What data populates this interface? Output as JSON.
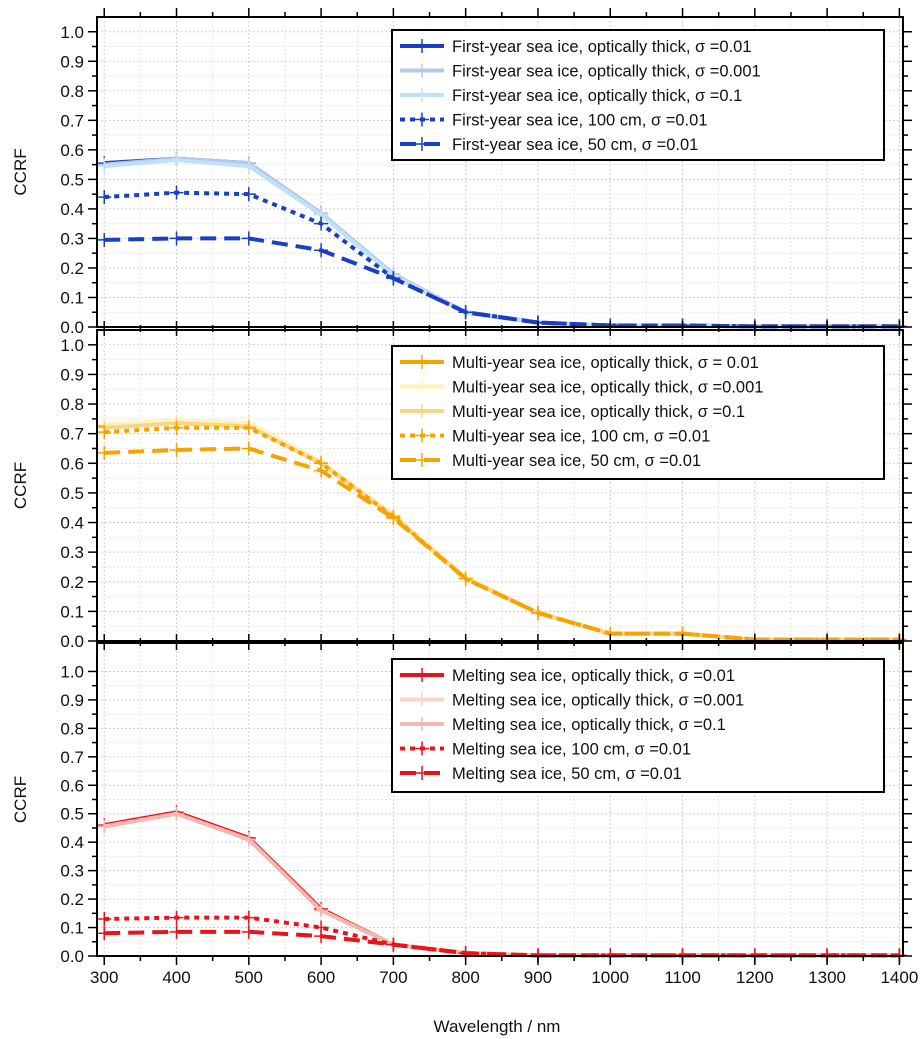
{
  "xlabel": "Wavelength / nm",
  "chart_data": [
    {
      "type": "line",
      "ylabel": "CCRF",
      "xlim": [
        290,
        1405
      ],
      "ylim": [
        0,
        1.05
      ],
      "x_ticks": [
        "300",
        "400",
        "500",
        "600",
        "700",
        "800",
        "900",
        "1000",
        "1100",
        "1200",
        "1300",
        "1400"
      ],
      "y_ticks": [
        "0.0",
        "0.1",
        "0.2",
        "0.3",
        "0.4",
        "0.5",
        "0.6",
        "0.7",
        "0.8",
        "0.9",
        "1.0"
      ],
      "grid": true,
      "legend_position": "top-right",
      "x": [
        300,
        400,
        500,
        600,
        700,
        800,
        900,
        1000,
        1100,
        1200,
        1300,
        1400
      ],
      "series": [
        {
          "name": "First-year sea ice, optically thick, σ =0.01",
          "color": "#1a3fc4",
          "dash": "solid",
          "values": [
            0.555,
            0.57,
            0.555,
            0.385,
            0.175,
            0.05,
            0.015,
            0.005,
            0.005,
            0.002,
            0.002,
            0.002
          ]
        },
        {
          "name": "First-year sea ice, optically thick, σ =0.001",
          "color": "#b4c7ee",
          "dash": "solid",
          "values": [
            0.55,
            0.57,
            0.555,
            0.385,
            0.18,
            0.05,
            0.015,
            0.005,
            0.005,
            0.002,
            0.002,
            0.002
          ]
        },
        {
          "name": "First-year sea ice, optically thick, σ =0.1",
          "color": "#bfe2f5",
          "dash": "solid",
          "values": [
            0.545,
            0.565,
            0.545,
            0.38,
            0.175,
            0.05,
            0.015,
            0.005,
            0.005,
            0.002,
            0.002,
            0.002
          ]
        },
        {
          "name": "First-year sea ice, 100 cm, σ =0.01",
          "color": "#1a3fc4",
          "dash": "dot",
          "values": [
            0.44,
            0.455,
            0.45,
            0.35,
            0.165,
            0.05,
            0.015,
            0.005,
            0.005,
            0.002,
            0.002,
            0.002
          ]
        },
        {
          "name": "First-year sea ice, 50 cm, σ =0.01",
          "color": "#1a3fc4",
          "dash": "dash",
          "values": [
            0.295,
            0.3,
            0.3,
            0.26,
            0.165,
            0.05,
            0.015,
            0.005,
            0.005,
            0.002,
            0.002,
            0.002
          ]
        }
      ]
    },
    {
      "type": "line",
      "ylabel": "CCRF",
      "xlim": [
        290,
        1405
      ],
      "ylim": [
        0,
        1.05
      ],
      "x_ticks": [
        "300",
        "400",
        "500",
        "600",
        "700",
        "800",
        "900",
        "1000",
        "1100",
        "1200",
        "1300",
        "1400"
      ],
      "y_ticks": [
        "0.0",
        "0.1",
        "0.2",
        "0.3",
        "0.4",
        "0.5",
        "0.6",
        "0.7",
        "0.8",
        "0.9",
        "1.0"
      ],
      "grid": true,
      "legend_position": "top-right",
      "x": [
        300,
        400,
        500,
        600,
        700,
        800,
        900,
        1000,
        1100,
        1200,
        1300,
        1400
      ],
      "series": [
        {
          "name": "Multi-year sea ice, optically thick, σ = 0.01",
          "color": "#f5a300",
          "dash": "solid",
          "values": [
            0.725,
            0.74,
            0.735,
            0.605,
            0.425,
            0.215,
            0.095,
            0.025,
            0.025,
            0.005,
            0.005,
            0.005
          ]
        },
        {
          "name": "Multi-year sea ice, optically thick, σ =0.001",
          "color": "#fbf6b8",
          "dash": "solid",
          "values": [
            0.73,
            0.745,
            0.735,
            0.605,
            0.425,
            0.215,
            0.095,
            0.025,
            0.025,
            0.005,
            0.005,
            0.005
          ]
        },
        {
          "name": "Multi-year sea ice, optically thick, σ =0.1",
          "color": "#f9d48a",
          "dash": "solid",
          "values": [
            0.72,
            0.735,
            0.725,
            0.6,
            0.42,
            0.21,
            0.095,
            0.025,
            0.025,
            0.005,
            0.005,
            0.005
          ]
        },
        {
          "name": "Multi-year sea ice, 100 cm, σ =0.01",
          "color": "#f5a300",
          "dash": "dot",
          "values": [
            0.705,
            0.72,
            0.72,
            0.6,
            0.42,
            0.21,
            0.095,
            0.025,
            0.025,
            0.005,
            0.005,
            0.005
          ]
        },
        {
          "name": "Multi-year sea ice, 50 cm, σ =0.01",
          "color": "#f5a300",
          "dash": "dash",
          "values": [
            0.635,
            0.645,
            0.65,
            0.575,
            0.415,
            0.21,
            0.095,
            0.025,
            0.025,
            0.005,
            0.005,
            0.005
          ]
        }
      ]
    },
    {
      "type": "line",
      "ylabel": "CCRF",
      "xlim": [
        290,
        1405
      ],
      "ylim": [
        0,
        1.1
      ],
      "x_ticks": [
        "300",
        "400",
        "500",
        "600",
        "700",
        "800",
        "900",
        "1000",
        "1100",
        "1200",
        "1300",
        "1400"
      ],
      "y_ticks": [
        "0.0",
        "0.1",
        "0.2",
        "0.3",
        "0.4",
        "0.5",
        "0.6",
        "0.7",
        "0.8",
        "0.9",
        "1.0"
      ],
      "grid": true,
      "legend_position": "top-right",
      "x": [
        300,
        400,
        500,
        600,
        700,
        800,
        900,
        1000,
        1100,
        1200,
        1300,
        1400
      ],
      "series": [
        {
          "name": "Melting sea ice, optically thick, σ =0.01",
          "color": "#e8141c",
          "dash": "solid",
          "values": [
            0.46,
            0.505,
            0.415,
            0.165,
            0.04,
            0.01,
            0.002,
            0.002,
            0.002,
            0.002,
            0.002,
            0.002
          ]
        },
        {
          "name": "Melting sea ice, optically thick, σ =0.001",
          "color": "#f9d3c8",
          "dash": "solid",
          "values": [
            0.455,
            0.5,
            0.41,
            0.16,
            0.04,
            0.01,
            0.002,
            0.002,
            0.002,
            0.002,
            0.002,
            0.002
          ]
        },
        {
          "name": "Melting sea ice, optically thick, σ =0.1",
          "color": "#f2b9b3",
          "dash": "solid",
          "values": [
            0.455,
            0.5,
            0.41,
            0.16,
            0.04,
            0.01,
            0.002,
            0.002,
            0.002,
            0.002,
            0.002,
            0.002
          ]
        },
        {
          "name": "Melting sea ice, 100 cm, σ =0.01",
          "color": "#e8141c",
          "dash": "dot",
          "values": [
            0.13,
            0.135,
            0.135,
            0.1,
            0.04,
            0.01,
            0.002,
            0.002,
            0.002,
            0.002,
            0.002,
            0.002
          ]
        },
        {
          "name": "Melting sea ice, 50 cm, σ =0.01",
          "color": "#e8141c",
          "dash": "dash",
          "values": [
            0.08,
            0.085,
            0.085,
            0.07,
            0.04,
            0.01,
            0.002,
            0.002,
            0.002,
            0.002,
            0.002,
            0.002
          ]
        }
      ]
    }
  ]
}
